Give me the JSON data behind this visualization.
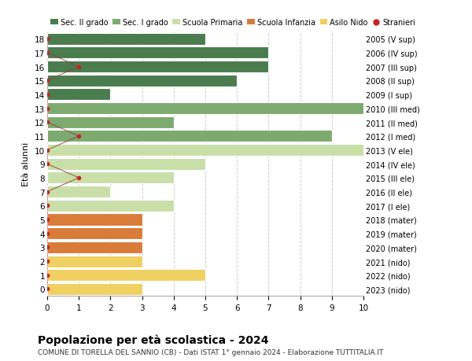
{
  "title": "Popolazione per età scolastica - 2024",
  "subtitle": "COMUNE DI TORELLA DEL SANNIO (CB) - Dati ISTAT 1° gennaio 2024 - Elaborazione TUTTITALIA.IT",
  "ylabel_left": "Età alunni",
  "xlim": [
    0,
    10
  ],
  "xticks": [
    0,
    1,
    2,
    3,
    4,
    5,
    6,
    7,
    8,
    9,
    10
  ],
  "ages": [
    18,
    17,
    16,
    15,
    14,
    13,
    12,
    11,
    10,
    9,
    8,
    7,
    6,
    5,
    4,
    3,
    2,
    1,
    0
  ],
  "right_labels": [
    "2005 (V sup)",
    "2006 (IV sup)",
    "2007 (III sup)",
    "2008 (II sup)",
    "2009 (I sup)",
    "2010 (III med)",
    "2011 (II med)",
    "2012 (I med)",
    "2013 (V ele)",
    "2014 (IV ele)",
    "2015 (III ele)",
    "2016 (II ele)",
    "2017 (I ele)",
    "2018 (mater)",
    "2019 (mater)",
    "2020 (mater)",
    "2021 (nido)",
    "2022 (nido)",
    "2023 (nido)"
  ],
  "bar_values": [
    5,
    7,
    7,
    6,
    2,
    10,
    4,
    9,
    10,
    5,
    4,
    2,
    4,
    3,
    3,
    3,
    3,
    5,
    3
  ],
  "bar_colors": [
    "#4a7c4e",
    "#4a7c4e",
    "#4a7c4e",
    "#4a7c4e",
    "#4a7c4e",
    "#7daa6f",
    "#7daa6f",
    "#7daa6f",
    "#c8dfa8",
    "#c8dfa8",
    "#c8dfa8",
    "#c8dfa8",
    "#c8dfa8",
    "#d97c3a",
    "#d97c3a",
    "#d97c3a",
    "#f0d060",
    "#f0d060",
    "#f0d060"
  ],
  "stranieri_values": [
    0,
    0,
    1,
    0,
    0,
    0,
    0,
    1,
    0,
    0,
    1,
    0,
    0,
    0,
    0,
    0,
    0,
    0,
    0
  ],
  "legend_labels": [
    "Sec. II grado",
    "Sec. I grado",
    "Scuola Primaria",
    "Scuola Infanzia",
    "Asilo Nido",
    "Stranieri"
  ],
  "legend_colors": [
    "#4a7c4e",
    "#7daa6f",
    "#c8dfa8",
    "#d97c3a",
    "#f0d060",
    "#cc2222"
  ],
  "bg_color": "#ffffff",
  "grid_color": "#cccccc",
  "bar_height": 0.85
}
